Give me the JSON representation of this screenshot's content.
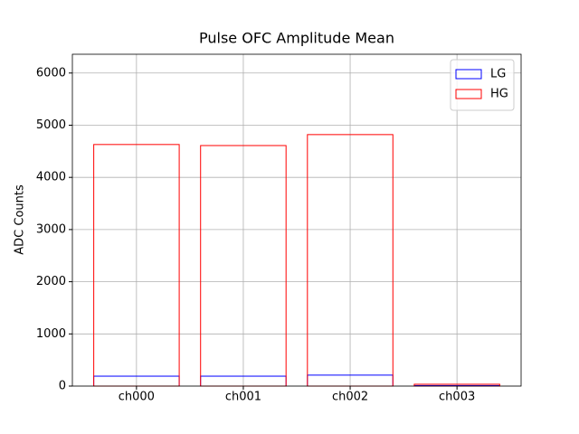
{
  "chart_data": {
    "type": "bar",
    "title": "Pulse OFC Amplitude Mean",
    "ylabel": "ADC Counts",
    "categories": [
      "ch000",
      "ch001",
      "ch002",
      "ch003"
    ],
    "series": [
      {
        "name": "LG",
        "color": "#0000ff",
        "values": [
          190,
          190,
          210,
          10
        ]
      },
      {
        "name": "HG",
        "color": "#ff0000",
        "values": [
          4630,
          4610,
          4820,
          35
        ]
      }
    ],
    "ylim": [
      0,
      6360
    ],
    "yticks": [
      0,
      1000,
      2000,
      3000,
      4000,
      5000,
      6000
    ],
    "grid": true,
    "legend": "upper right",
    "fill": false
  }
}
